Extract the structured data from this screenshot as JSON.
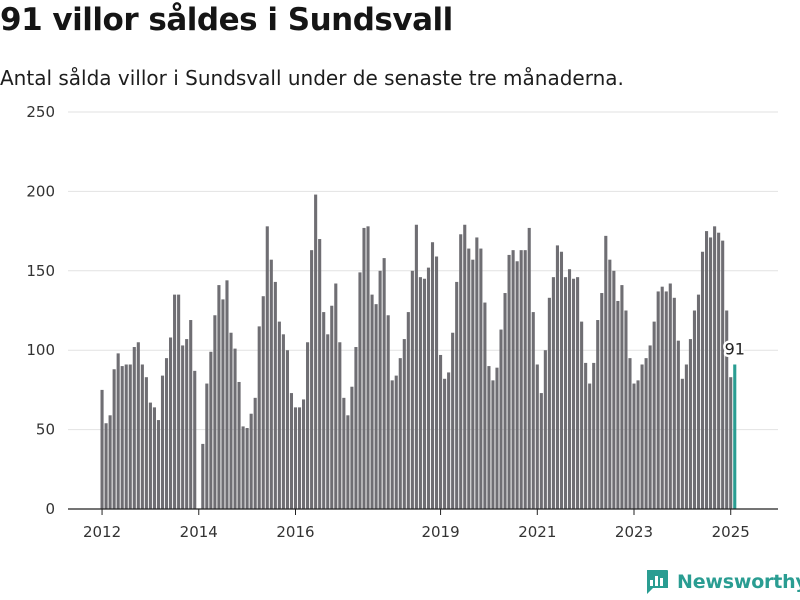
{
  "header": {
    "title": "91 villor såldes i Sundsvall",
    "subtitle": "Antal sålda villor i Sundsvall under de senaste tre månaderna."
  },
  "brand": {
    "name": "Newsworthy",
    "icon": "bar-chart-logo-icon",
    "color": "#2a9d92"
  },
  "colors": {
    "bar": "#6f6e73",
    "highlight": "#2a9d92",
    "grid": "#e2e2e2",
    "axis": "#222222"
  },
  "chart_data": {
    "type": "bar",
    "title": "",
    "xlabel": "",
    "ylabel": "",
    "ylim": [
      0,
      250
    ],
    "yticks": [
      0,
      50,
      100,
      150,
      200,
      250
    ],
    "xticks": [
      {
        "year": 2012,
        "label": "2012"
      },
      {
        "year": 2014,
        "label": "2014"
      },
      {
        "year": 2016,
        "label": "2016"
      },
      {
        "year": 2019,
        "label": "2019"
      },
      {
        "year": 2021,
        "label": "2021"
      },
      {
        "year": 2023,
        "label": "2023"
      },
      {
        "year": 2025,
        "label": "2025"
      }
    ],
    "grid": "horizontal",
    "start": {
      "year": 2012,
      "month": 1
    },
    "frequency": "monthly",
    "values": [
      75,
      54,
      59,
      88,
      98,
      90,
      91,
      91,
      102,
      105,
      91,
      83,
      67,
      64,
      56,
      84,
      95,
      108,
      135,
      135,
      103,
      107,
      119,
      87,
      0,
      41,
      79,
      99,
      122,
      141,
      132,
      144,
      111,
      101,
      80,
      52,
      51,
      60,
      70,
      115,
      134,
      178,
      157,
      143,
      118,
      110,
      100,
      73,
      64,
      64,
      69,
      105,
      163,
      198,
      170,
      124,
      110,
      128,
      142,
      105,
      70,
      59,
      77,
      102,
      149,
      177,
      178,
      135,
      129,
      150,
      158,
      122,
      81,
      84,
      95,
      107,
      124,
      150,
      179,
      146,
      145,
      152,
      168,
      159,
      97,
      82,
      86,
      111,
      143,
      173,
      179,
      164,
      157,
      171,
      164,
      130,
      90,
      81,
      89,
      113,
      136,
      160,
      163,
      156,
      163,
      163,
      177,
      124,
      91,
      73,
      100,
      133,
      146,
      166,
      162,
      146,
      151,
      145,
      146,
      118,
      92,
      79,
      92,
      119,
      136,
      172,
      157,
      150,
      131,
      141,
      125,
      95,
      79,
      81,
      91,
      95,
      103,
      118,
      137,
      140,
      137,
      142,
      133,
      106,
      82,
      91,
      107,
      125,
      135,
      162,
      175,
      171,
      178,
      174,
      169,
      125,
      83,
      91
    ],
    "highlight": {
      "value": 91,
      "label": "91"
    }
  }
}
